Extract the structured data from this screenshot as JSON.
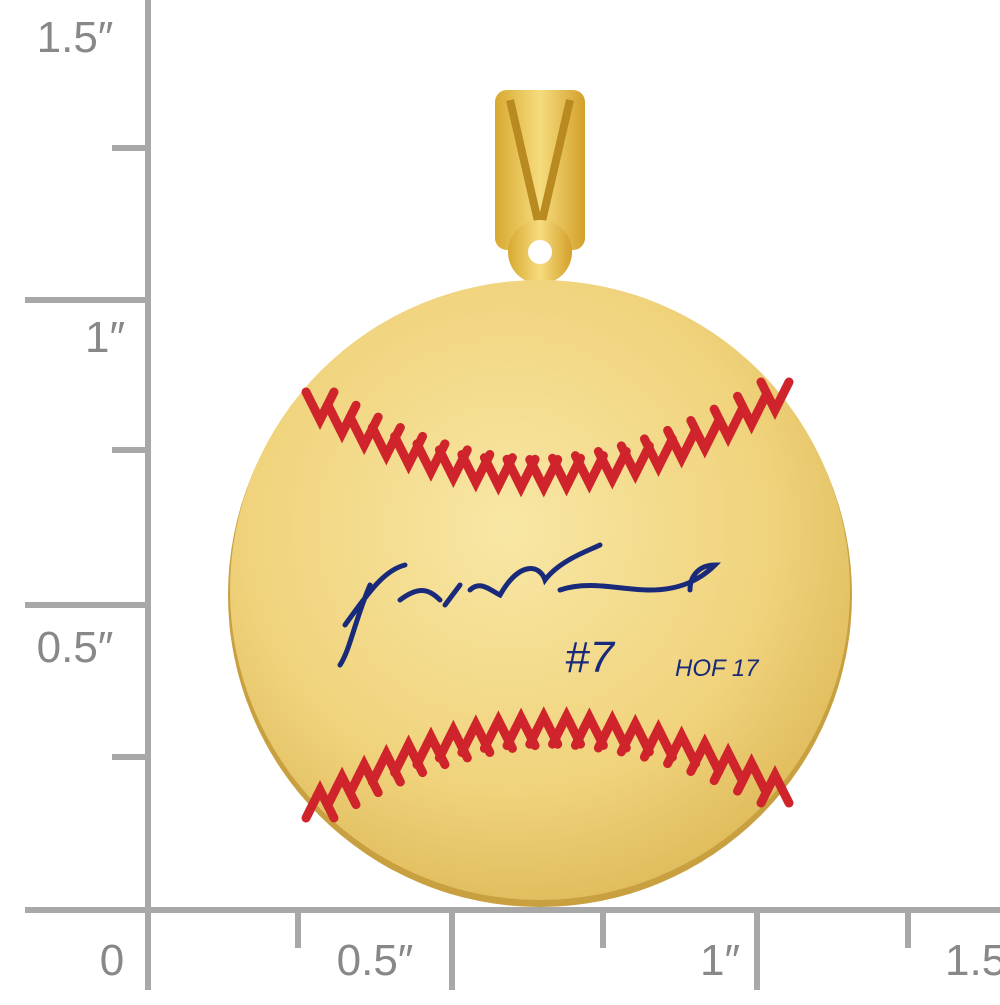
{
  "ruler": {
    "vertical_labels": [
      "1.5″",
      "1″",
      "0.5″"
    ],
    "horizontal_labels": [
      "0",
      "0.5″",
      "1″",
      "1.5"
    ]
  },
  "pendant": {
    "number": "#7",
    "inscription": "HOF 17"
  }
}
